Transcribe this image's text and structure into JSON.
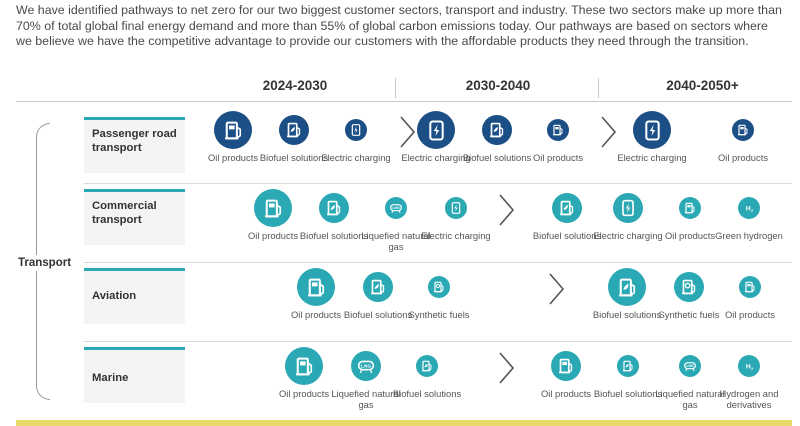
{
  "intro": "We have identified pathways to net zero for our two biggest customer sectors, transport and industry. These two sectors make up more than 70% of total global final energy demand and more than 55% of global carbon emissions today. Our pathways are based on sectors where we believe we have the competitive advantage to provide our customers with the affordable products they need through the transition.",
  "periods": [
    "2024-2030",
    "2030-2040",
    "2040-2050+"
  ],
  "group_label": "Transport",
  "colors": {
    "navy": "#1b4f86",
    "teal": "#2aa9b4",
    "accent_bar": "#e9d96a"
  },
  "sectors": [
    {
      "name_line1": "Passenger road",
      "name_line2": "transport",
      "color": "navy",
      "stages": [
        [
          {
            "label": "Oil products",
            "icon": "oil-pump-icon",
            "emphasis": "large"
          },
          {
            "label": "Biofuel solutions",
            "icon": "biofuel-pump-icon",
            "emphasis": "medium"
          },
          {
            "label": "Electric charging",
            "icon": "ev-charger-icon",
            "emphasis": "small"
          }
        ],
        [
          {
            "label": "Electric charging",
            "icon": "ev-charger-icon",
            "emphasis": "large"
          },
          {
            "label": "Biofuel solutions",
            "icon": "biofuel-pump-icon",
            "emphasis": "medium"
          },
          {
            "label": "Oil products",
            "icon": "oil-pump-icon",
            "emphasis": "small"
          }
        ],
        [
          {
            "label": "Electric charging",
            "icon": "ev-charger-icon",
            "emphasis": "large"
          },
          {
            "label": "Oil products",
            "icon": "oil-pump-icon",
            "emphasis": "small"
          }
        ]
      ]
    },
    {
      "name_line1": "Commercial",
      "name_line2": "transport",
      "color": "teal",
      "stages": [
        [
          {
            "label": "Oil products",
            "icon": "oil-pump-icon",
            "emphasis": "large"
          },
          {
            "label": "Biofuel solutions",
            "icon": "biofuel-pump-icon",
            "emphasis": "medium"
          },
          {
            "label": "Liquefied natural gas",
            "icon": "lng-tank-icon",
            "emphasis": "small"
          },
          {
            "label": "Electric charging",
            "icon": "ev-charger-icon",
            "emphasis": "small"
          }
        ],
        [
          {
            "label": "Biofuel solutions",
            "icon": "biofuel-pump-icon",
            "emphasis": "medium"
          },
          {
            "label": "Electric charging",
            "icon": "ev-charger-icon",
            "emphasis": "medium"
          },
          {
            "label": "Oil products",
            "icon": "oil-pump-icon",
            "emphasis": "small"
          },
          {
            "label": "Green hydrogen",
            "icon": "hydrogen-icon",
            "emphasis": "small"
          }
        ]
      ]
    },
    {
      "name_line1": "Aviation",
      "name_line2": "",
      "color": "teal",
      "stages": [
        [
          {
            "label": "Oil products",
            "icon": "oil-pump-icon",
            "emphasis": "large"
          },
          {
            "label": "Biofuel solutions",
            "icon": "biofuel-pump-icon",
            "emphasis": "medium"
          },
          {
            "label": "Synthetic fuels",
            "icon": "synthetic-fuel-icon",
            "emphasis": "small"
          }
        ],
        [
          {
            "label": "Biofuel solutions",
            "icon": "biofuel-pump-icon",
            "emphasis": "large"
          },
          {
            "label": "Synthetic fuels",
            "icon": "synthetic-fuel-icon",
            "emphasis": "medium"
          },
          {
            "label": "Oil products",
            "icon": "oil-pump-icon",
            "emphasis": "small"
          }
        ]
      ]
    },
    {
      "name_line1": "Marine",
      "name_line2": "",
      "color": "teal",
      "stages": [
        [
          {
            "label": "Oil products",
            "icon": "oil-pump-icon",
            "emphasis": "large"
          },
          {
            "label": "Liquefied natural gas",
            "icon": "lng-tank-icon",
            "emphasis": "medium"
          },
          {
            "label": "Biofuel solutions",
            "icon": "biofuel-pump-icon",
            "emphasis": "small"
          }
        ],
        [
          {
            "label": "Oil products",
            "icon": "oil-pump-icon",
            "emphasis": "medium"
          },
          {
            "label": "Biofuel solutions",
            "icon": "biofuel-pump-icon",
            "emphasis": "small"
          },
          {
            "label": "Liquefied natural gas",
            "icon": "lng-tank-icon",
            "emphasis": "small"
          },
          {
            "label": "Hydrogen and derivatives",
            "icon": "hydrogen-icon",
            "emphasis": "small"
          }
        ]
      ]
    }
  ]
}
